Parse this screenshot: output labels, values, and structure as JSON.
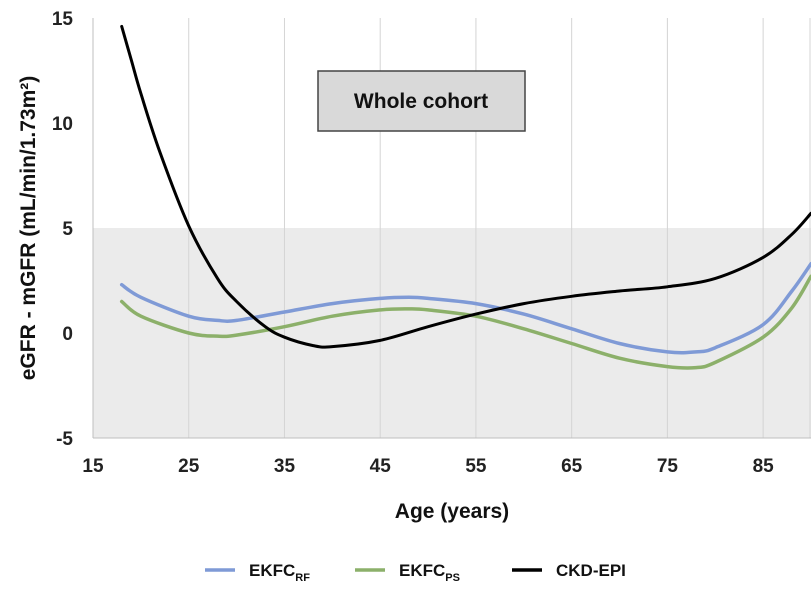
{
  "chart_data": {
    "type": "line",
    "annotation": "Whole cohort",
    "xlabel": "Age (years)",
    "ylabel": "eGFR - mGFR (mL/min/1.73m²)",
    "xlim": [
      15,
      90
    ],
    "ylim": [
      -5,
      15
    ],
    "x_ticks": [
      "15",
      "25",
      "35",
      "45",
      "55",
      "65",
      "75",
      "85"
    ],
    "y_ticks": [
      "15",
      "10",
      "5",
      "0",
      "-5"
    ],
    "grid": "vertical",
    "shaded_band": [
      -5,
      5
    ],
    "legend_position": "bottom",
    "series": [
      {
        "name": "EKFC",
        "subscript": "RF",
        "color": "#7f9ad6",
        "x": [
          18,
          20,
          25,
          28,
          30,
          35,
          40,
          45,
          48,
          50,
          55,
          60,
          65,
          70,
          75,
          78,
          80,
          85,
          88,
          90
        ],
        "y": [
          2.3,
          1.7,
          0.8,
          0.6,
          0.6,
          1.0,
          1.4,
          1.65,
          1.7,
          1.65,
          1.4,
          0.9,
          0.2,
          -0.5,
          -0.9,
          -0.9,
          -0.7,
          0.4,
          2.0,
          3.3
        ]
      },
      {
        "name": "EKFC",
        "subscript": "PS",
        "color": "#8cb06a",
        "x": [
          18,
          20,
          25,
          28,
          30,
          35,
          40,
          45,
          48,
          50,
          55,
          60,
          65,
          70,
          75,
          78,
          80,
          85,
          88,
          90
        ],
        "y": [
          1.5,
          0.8,
          0.0,
          -0.15,
          -0.1,
          0.3,
          0.8,
          1.1,
          1.15,
          1.1,
          0.8,
          0.2,
          -0.5,
          -1.2,
          -1.6,
          -1.65,
          -1.4,
          -0.2,
          1.2,
          2.7
        ]
      },
      {
        "name": "CKD-EPI",
        "subscript": "",
        "color": "#000000",
        "x": [
          18,
          19,
          20,
          22,
          25,
          28,
          30,
          33,
          35,
          38,
          40,
          45,
          50,
          55,
          60,
          65,
          70,
          75,
          80,
          85,
          88,
          90
        ],
        "y": [
          14.6,
          13.0,
          11.4,
          8.6,
          5.1,
          2.6,
          1.5,
          0.3,
          -0.2,
          -0.6,
          -0.65,
          -0.35,
          0.3,
          0.9,
          1.4,
          1.75,
          2.0,
          2.2,
          2.6,
          3.6,
          4.7,
          5.7
        ]
      }
    ]
  }
}
